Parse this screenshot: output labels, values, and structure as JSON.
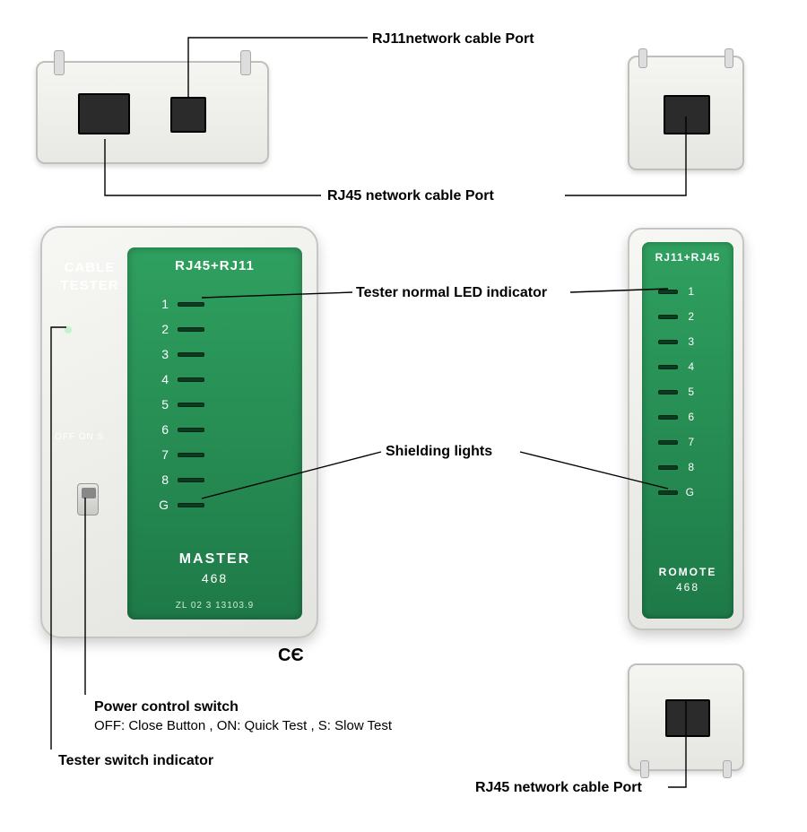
{
  "labels": {
    "rj11_port": "RJ11network cable Port",
    "rj45_port_top": "RJ45 network cable Port",
    "tester_led": "Tester normal LED indicator",
    "shielding": "Shielding lights",
    "power_switch_title": "Power control switch",
    "power_switch_desc": "OFF: Close Button , ON: Quick Test , S: Slow Test",
    "switch_indicator": "Tester switch indicator",
    "rj45_port_bottom": "RJ45 network cable Port"
  },
  "master": {
    "cable_tester": "CABLE TESTER",
    "panel_title": "RJ45+RJ11",
    "offons": "OFF ON S",
    "nums": [
      "1",
      "2",
      "3",
      "4",
      "5",
      "6",
      "7",
      "8",
      "G"
    ],
    "foot1": "MASTER",
    "foot2": "468",
    "zl": "ZL 02 3 13103.9",
    "ce": "CЄ"
  },
  "remote": {
    "panel_title": "RJ11+RJ45",
    "nums": [
      "1",
      "2",
      "3",
      "4",
      "5",
      "6",
      "7",
      "8",
      "G"
    ],
    "foot1": "ROMOTE",
    "foot2": "468"
  },
  "led_spacing": {
    "master_start": 55,
    "master_step": 28,
    "remote_start": 48,
    "remote_step": 28
  },
  "colors": {
    "panel_green": "#2fa05f",
    "panel_green_dark": "#1e7a48",
    "device_body": "#efefeb",
    "led_bar": "#0c3b22"
  }
}
